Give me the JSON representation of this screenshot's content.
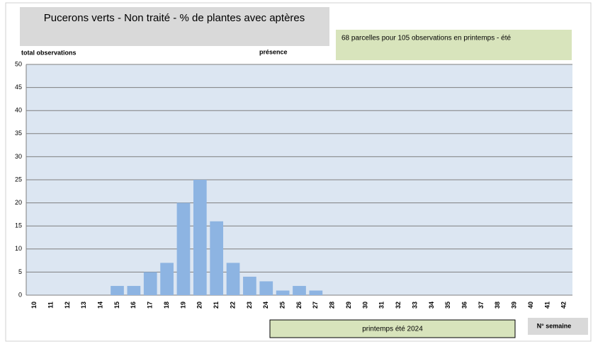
{
  "chart_data": {
    "type": "bar",
    "title": "Pucerons verts - Non traité - % de plantes avec aptères",
    "annotation": "68 parcelles pour 105 observations en printemps - été",
    "ylabel": "total observations",
    "series_label": "présence",
    "period_label": "printemps été 2024",
    "xlabel": "N° semaine",
    "categories": [
      "10",
      "11",
      "12",
      "13",
      "14",
      "15",
      "16",
      "17",
      "18",
      "19",
      "20",
      "21",
      "22",
      "23",
      "24",
      "25",
      "26",
      "27",
      "28",
      "29",
      "30",
      "31",
      "32",
      "33",
      "34",
      "35",
      "36",
      "37",
      "38",
      "39",
      "40",
      "41",
      "42"
    ],
    "values": [
      0,
      0,
      0,
      0,
      0,
      2,
      2,
      5,
      7,
      20,
      25,
      16,
      7,
      4,
      3,
      1,
      2,
      1,
      0,
      0,
      0,
      0,
      0,
      0,
      0,
      0,
      0,
      0,
      0,
      0,
      0,
      0,
      0
    ],
    "color": "#8db4e2",
    "ylim": [
      0,
      50
    ],
    "yticks": [
      0,
      5,
      10,
      15,
      20,
      25,
      30,
      35,
      40,
      45,
      50
    ],
    "grid": true
  }
}
